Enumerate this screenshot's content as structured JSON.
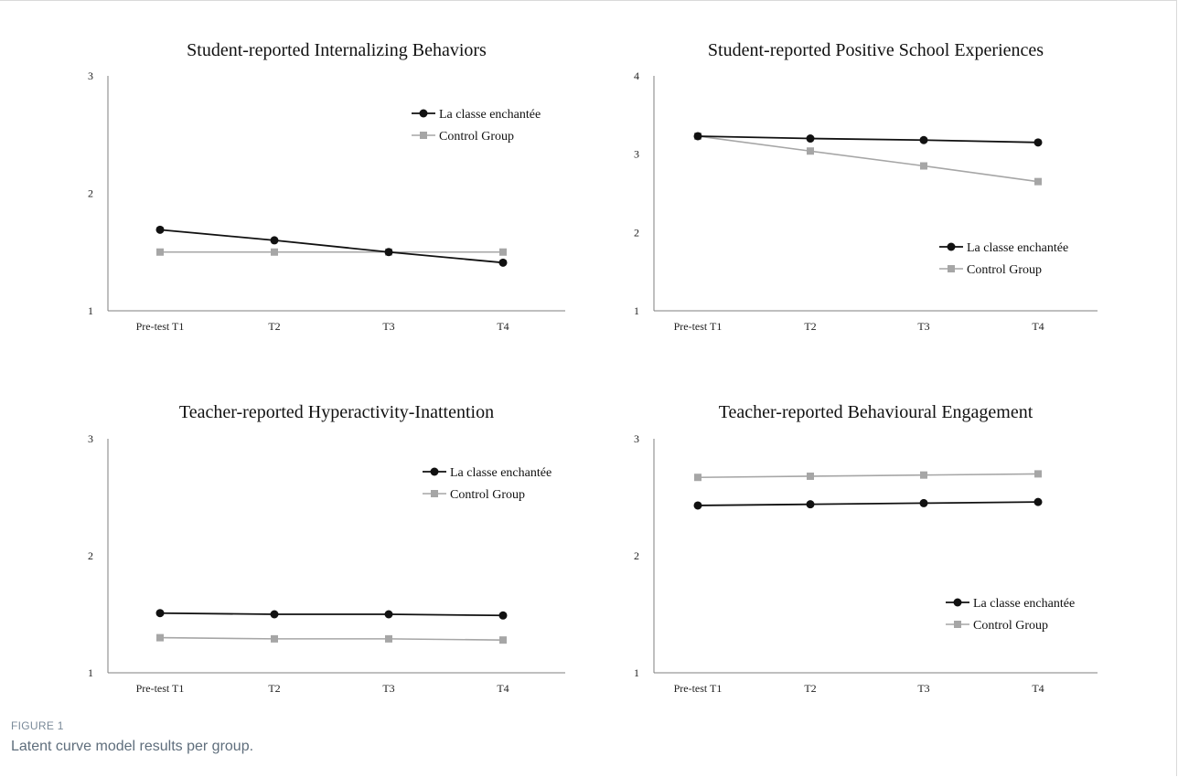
{
  "figure": {
    "label": "FIGURE 1",
    "caption": "Latent curve model results per group."
  },
  "colors": {
    "intervention": "#111111",
    "control": "#a6a6a6",
    "axis": "#7f7f7f"
  },
  "chart_data": [
    {
      "type": "line",
      "title": "Student-reported Internalizing Behaviors",
      "categories": [
        "Pre-test T1",
        "T2",
        "T3",
        "T4"
      ],
      "ylim": [
        1,
        3
      ],
      "yticks": [
        1,
        2,
        3
      ],
      "legend_position": "top-right",
      "series": [
        {
          "name": "La classe enchantée",
          "marker": "circle",
          "values": [
            1.69,
            1.6,
            1.5,
            1.41
          ]
        },
        {
          "name": "Control Group",
          "marker": "square",
          "values": [
            1.5,
            1.5,
            1.5,
            1.5
          ]
        }
      ]
    },
    {
      "type": "line",
      "title": "Student-reported Positive School Experiences",
      "categories": [
        "Pre-test T1",
        "T2",
        "T3",
        "T4"
      ],
      "ylim": [
        1,
        4
      ],
      "yticks": [
        1,
        2,
        3,
        4
      ],
      "legend_position": "bottom-right",
      "series": [
        {
          "name": "La classe enchantée",
          "marker": "circle",
          "values": [
            3.23,
            3.2,
            3.18,
            3.15
          ]
        },
        {
          "name": "Control Group",
          "marker": "square",
          "values": [
            3.23,
            3.04,
            2.85,
            2.65
          ]
        }
      ]
    },
    {
      "type": "line",
      "title": "Teacher-reported Hyperactivity-Inattention",
      "categories": [
        "Pre-test T1",
        "T2",
        "T3",
        "T4"
      ],
      "ylim": [
        1,
        3
      ],
      "yticks": [
        1,
        2,
        3
      ],
      "legend_position": "top-right",
      "series": [
        {
          "name": "La classe enchantée",
          "marker": "circle",
          "values": [
            1.51,
            1.5,
            1.5,
            1.49
          ]
        },
        {
          "name": "Control Group",
          "marker": "square",
          "values": [
            1.3,
            1.29,
            1.29,
            1.28
          ]
        }
      ]
    },
    {
      "type": "line",
      "title": "Teacher-reported Behavioural Engagement",
      "categories": [
        "Pre-test T1",
        "T2",
        "T3",
        "T4"
      ],
      "ylim": [
        1,
        3
      ],
      "yticks": [
        1,
        2,
        3
      ],
      "legend_position": "bottom-right",
      "series": [
        {
          "name": "La classe enchantée",
          "marker": "circle",
          "values": [
            2.43,
            2.44,
            2.45,
            2.46
          ]
        },
        {
          "name": "Control Group",
          "marker": "square",
          "values": [
            2.67,
            2.68,
            2.69,
            2.7
          ]
        }
      ]
    }
  ]
}
